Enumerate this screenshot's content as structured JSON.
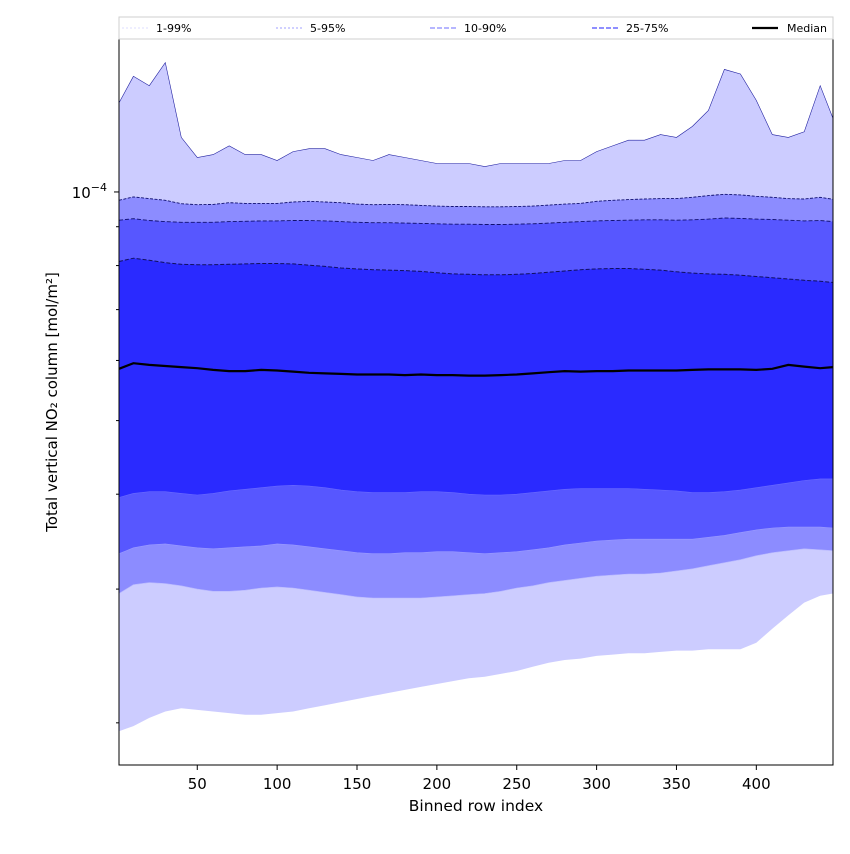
{
  "chart_data": {
    "type": "area",
    "xlabel": "Binned row index",
    "ylabel": "Total vertical NO₂ column [mol/m²]",
    "x_ticks": [
      50,
      100,
      150,
      200,
      250,
      300,
      350,
      400
    ],
    "xlim": [
      1,
      448
    ],
    "y_scale": "log",
    "ylim": [
      1.76e-05,
      0.000159
    ],
    "y_tick_labels": [
      {
        "value": 0.0001,
        "base": "10",
        "exp": "−4"
      }
    ],
    "y_minor_ticks": [
      2e-05,
      3e-05,
      4e-05,
      5e-05,
      6e-05,
      7e-05,
      8e-05,
      9e-05
    ],
    "legend_position": "top",
    "legend": [
      {
        "label": "1-99%",
        "style": "dotted",
        "color": "#e4e4ff"
      },
      {
        "label": "5-95%",
        "style": "dotted",
        "color": "#b4b4ff"
      },
      {
        "label": "10-90%",
        "style": "dashed",
        "color": "#8a8aff"
      },
      {
        "label": "25-75%",
        "style": "dashed",
        "color": "#4c4cff"
      },
      {
        "label": "Median",
        "style": "solid",
        "color": "#000000"
      }
    ],
    "fill_colors": {
      "p1_99": "#ccccff",
      "p5_95": "#8c8cff",
      "p10_90": "#5757ff",
      "p25_75": "#2a2aff"
    },
    "x": [
      1,
      10,
      20,
      30,
      40,
      50,
      60,
      70,
      80,
      90,
      100,
      110,
      120,
      130,
      140,
      150,
      160,
      170,
      180,
      190,
      200,
      210,
      220,
      230,
      240,
      250,
      260,
      270,
      280,
      290,
      300,
      310,
      320,
      330,
      340,
      350,
      360,
      370,
      380,
      390,
      400,
      410,
      420,
      430,
      440,
      448
    ],
    "series": [
      {
        "name": "99%",
        "values": [
          0.000131,
          0.000142,
          0.000138,
          0.000148,
          0.000118,
          0.000111,
          0.000112,
          0.000115,
          0.000112,
          0.000112,
          0.00011,
          0.000113,
          0.000114,
          0.000114,
          0.000112,
          0.000111,
          0.00011,
          0.000112,
          0.000111,
          0.00011,
          0.000109,
          0.000109,
          0.000109,
          0.000108,
          0.000109,
          0.000109,
          0.000109,
          0.000109,
          0.00011,
          0.00011,
          0.000113,
          0.000115,
          0.000117,
          0.000117,
          0.000119,
          0.000118,
          0.000122,
          0.000128,
          0.000145,
          0.000143,
          0.000132,
          0.000119,
          0.000118,
          0.00012,
          0.000138,
          0.000125
        ]
      },
      {
        "name": "95%",
        "values": [
          9.75e-05,
          9.85e-05,
          9.8e-05,
          9.75e-05,
          9.65e-05,
          9.62e-05,
          9.63e-05,
          9.68e-05,
          9.66e-05,
          9.66e-05,
          9.66e-05,
          9.7e-05,
          9.72e-05,
          9.7e-05,
          9.68e-05,
          9.64e-05,
          9.62e-05,
          9.63e-05,
          9.62e-05,
          9.6e-05,
          9.58e-05,
          9.57e-05,
          9.57e-05,
          9.56e-05,
          9.56e-05,
          9.57e-05,
          9.58e-05,
          9.61e-05,
          9.64e-05,
          9.66e-05,
          9.72e-05,
          9.75e-05,
          9.77e-05,
          9.79e-05,
          9.8e-05,
          9.8e-05,
          9.84e-05,
          9.89e-05,
          9.93e-05,
          9.91e-05,
          9.87e-05,
          9.84e-05,
          9.8e-05,
          9.79e-05,
          9.84e-05,
          9.78e-05
        ]
      },
      {
        "name": "90%",
        "values": [
          9.18e-05,
          9.22e-05,
          9.17e-05,
          9.14e-05,
          9.12e-05,
          9.12e-05,
          9.12e-05,
          9.14e-05,
          9.15e-05,
          9.16e-05,
          9.16e-05,
          9.17e-05,
          9.17e-05,
          9.16e-05,
          9.14e-05,
          9.12e-05,
          9.11e-05,
          9.11e-05,
          9.1e-05,
          9.09e-05,
          9.08e-05,
          9.07e-05,
          9.07e-05,
          9.06e-05,
          9.06e-05,
          9.07e-05,
          9.08e-05,
          9.1e-05,
          9.12e-05,
          9.14e-05,
          9.16e-05,
          9.17e-05,
          9.18e-05,
          9.19e-05,
          9.19e-05,
          9.18e-05,
          9.19e-05,
          9.21e-05,
          9.24e-05,
          9.23e-05,
          9.21e-05,
          9.2e-05,
          9.18e-05,
          9.16e-05,
          9.17e-05,
          9.14e-05
        ]
      },
      {
        "name": "75%",
        "values": [
          8.1e-05,
          8.18e-05,
          8.13e-05,
          8.07e-05,
          8.03e-05,
          8.02e-05,
          8.02e-05,
          8.03e-05,
          8.04e-05,
          8.05e-05,
          8.05e-05,
          8.04e-05,
          8.01e-05,
          7.98e-05,
          7.94e-05,
          7.92e-05,
          7.9e-05,
          7.89e-05,
          7.88e-05,
          7.86e-05,
          7.83e-05,
          7.8e-05,
          7.79e-05,
          7.78e-05,
          7.78e-05,
          7.79e-05,
          7.81e-05,
          7.84e-05,
          7.87e-05,
          7.9e-05,
          7.92e-05,
          7.93e-05,
          7.93e-05,
          7.91e-05,
          7.89e-05,
          7.85e-05,
          7.82e-05,
          7.8e-05,
          7.79e-05,
          7.77e-05,
          7.74e-05,
          7.71e-05,
          7.68e-05,
          7.65e-05,
          7.63e-05,
          7.6e-05
        ]
      },
      {
        "name": "Median",
        "values": [
          5.85e-05,
          5.95e-05,
          5.92e-05,
          5.9e-05,
          5.88e-05,
          5.86e-05,
          5.83e-05,
          5.81e-05,
          5.81e-05,
          5.83e-05,
          5.82e-05,
          5.8e-05,
          5.78e-05,
          5.77e-05,
          5.76e-05,
          5.75e-05,
          5.75e-05,
          5.75e-05,
          5.74e-05,
          5.75e-05,
          5.74e-05,
          5.74e-05,
          5.73e-05,
          5.73e-05,
          5.74e-05,
          5.75e-05,
          5.77e-05,
          5.79e-05,
          5.81e-05,
          5.8e-05,
          5.81e-05,
          5.81e-05,
          5.82e-05,
          5.82e-05,
          5.82e-05,
          5.82e-05,
          5.83e-05,
          5.84e-05,
          5.84e-05,
          5.84e-05,
          5.83e-05,
          5.85e-05,
          5.92e-05,
          5.89e-05,
          5.86e-05,
          5.88e-05
        ]
      },
      {
        "name": "25%",
        "values": [
          3.96e-05,
          4.01e-05,
          4.03e-05,
          4.03e-05,
          4.01e-05,
          3.99e-05,
          4.01e-05,
          4.04e-05,
          4.06e-05,
          4.08e-05,
          4.1e-05,
          4.11e-05,
          4.1e-05,
          4.08e-05,
          4.05e-05,
          4.03e-05,
          4.02e-05,
          4.02e-05,
          4.02e-05,
          4.03e-05,
          4.03e-05,
          4.02e-05,
          4e-05,
          3.99e-05,
          3.99e-05,
          4e-05,
          4.02e-05,
          4.04e-05,
          4.06e-05,
          4.07e-05,
          4.07e-05,
          4.07e-05,
          4.07e-05,
          4.06e-05,
          4.05e-05,
          4.04e-05,
          4.02e-05,
          4.02e-05,
          4.03e-05,
          4.05e-05,
          4.08e-05,
          4.11e-05,
          4.14e-05,
          4.17e-05,
          4.19e-05,
          4.19e-05
        ]
      },
      {
        "name": "10%",
        "values": [
          3.34e-05,
          3.4e-05,
          3.43e-05,
          3.44e-05,
          3.42e-05,
          3.4e-05,
          3.39e-05,
          3.4e-05,
          3.41e-05,
          3.42e-05,
          3.44e-05,
          3.43e-05,
          3.41e-05,
          3.39e-05,
          3.37e-05,
          3.35e-05,
          3.34e-05,
          3.34e-05,
          3.35e-05,
          3.35e-05,
          3.36e-05,
          3.36e-05,
          3.35e-05,
          3.34e-05,
          3.35e-05,
          3.36e-05,
          3.38e-05,
          3.4e-05,
          3.43e-05,
          3.45e-05,
          3.47e-05,
          3.48e-05,
          3.49e-05,
          3.49e-05,
          3.49e-05,
          3.49e-05,
          3.49e-05,
          3.51e-05,
          3.53e-05,
          3.56e-05,
          3.59e-05,
          3.61e-05,
          3.62e-05,
          3.62e-05,
          3.62e-05,
          3.61e-05
        ]
      },
      {
        "name": "5%",
        "values": [
          2.96e-05,
          3.04e-05,
          3.06e-05,
          3.05e-05,
          3.03e-05,
          3e-05,
          2.98e-05,
          2.98e-05,
          2.99e-05,
          3.01e-05,
          3.02e-05,
          3.01e-05,
          2.99e-05,
          2.97e-05,
          2.95e-05,
          2.93e-05,
          2.92e-05,
          2.92e-05,
          2.92e-05,
          2.92e-05,
          2.93e-05,
          2.94e-05,
          2.95e-05,
          2.96e-05,
          2.98e-05,
          3.01e-05,
          3.03e-05,
          3.06e-05,
          3.08e-05,
          3.1e-05,
          3.12e-05,
          3.13e-05,
          3.14e-05,
          3.14e-05,
          3.15e-05,
          3.17e-05,
          3.19e-05,
          3.22e-05,
          3.25e-05,
          3.28e-05,
          3.32e-05,
          3.35e-05,
          3.37e-05,
          3.39e-05,
          3.38e-05,
          3.37e-05
        ]
      },
      {
        "name": "1%",
        "values": [
          1.95e-05,
          1.98e-05,
          2.03e-05,
          2.07e-05,
          2.09e-05,
          2.08e-05,
          2.07e-05,
          2.06e-05,
          2.05e-05,
          2.05e-05,
          2.06e-05,
          2.07e-05,
          2.09e-05,
          2.11e-05,
          2.13e-05,
          2.15e-05,
          2.17e-05,
          2.19e-05,
          2.21e-05,
          2.23e-05,
          2.25e-05,
          2.27e-05,
          2.29e-05,
          2.3e-05,
          2.32e-05,
          2.34e-05,
          2.37e-05,
          2.4e-05,
          2.42e-05,
          2.43e-05,
          2.45e-05,
          2.46e-05,
          2.47e-05,
          2.47e-05,
          2.48e-05,
          2.49e-05,
          2.49e-05,
          2.5e-05,
          2.5e-05,
          2.5e-05,
          2.55e-05,
          2.66e-05,
          2.77e-05,
          2.88e-05,
          2.94e-05,
          2.96e-05
        ]
      }
    ]
  }
}
